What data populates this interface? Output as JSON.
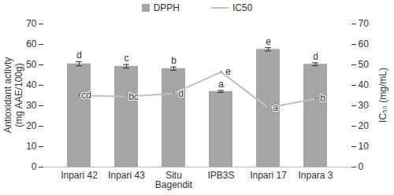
{
  "chart_data": {
    "type": "bar",
    "categories": [
      "Inpari 42",
      "Inpari 43",
      "Situ Bagendit",
      "IPB3S",
      "Inpari 17",
      "Inpara 3"
    ],
    "ylabel": "Antioxidant activty (mg AAE/100g)",
    "ylim": [
      0,
      70
    ],
    "yticks": [
      0,
      10,
      20,
      30,
      40,
      50,
      60,
      70
    ],
    "y2label": "IC₅₀ (mg/mL)",
    "y2lim": [
      0,
      70
    ],
    "y2ticks": [
      0,
      10,
      20,
      30,
      40,
      50,
      60,
      70
    ],
    "grid": false,
    "legend": "top",
    "series": [
      {
        "name": "DPPH",
        "type": "bar",
        "color": "#a5a5a5",
        "values": [
          50.5,
          49.3,
          48.2,
          37.0,
          57.6,
          50.3
        ],
        "errors": [
          1.0,
          0.9,
          0.8,
          0.5,
          0.8,
          0.7
        ],
        "letters": [
          "d",
          "c",
          "b",
          "a",
          "e",
          "d"
        ]
      },
      {
        "name": "IC50",
        "type": "line",
        "axis": "y2",
        "color": "#c0c0c0",
        "values": [
          35.0,
          34.5,
          36.0,
          46.5,
          29.0,
          33.5
        ],
        "errors": [
          0.8,
          0.4,
          0.4,
          0.4,
          0.4,
          0.4
        ],
        "letters": [
          "cd",
          "bc",
          "d",
          "e",
          "a",
          "b"
        ]
      }
    ]
  }
}
